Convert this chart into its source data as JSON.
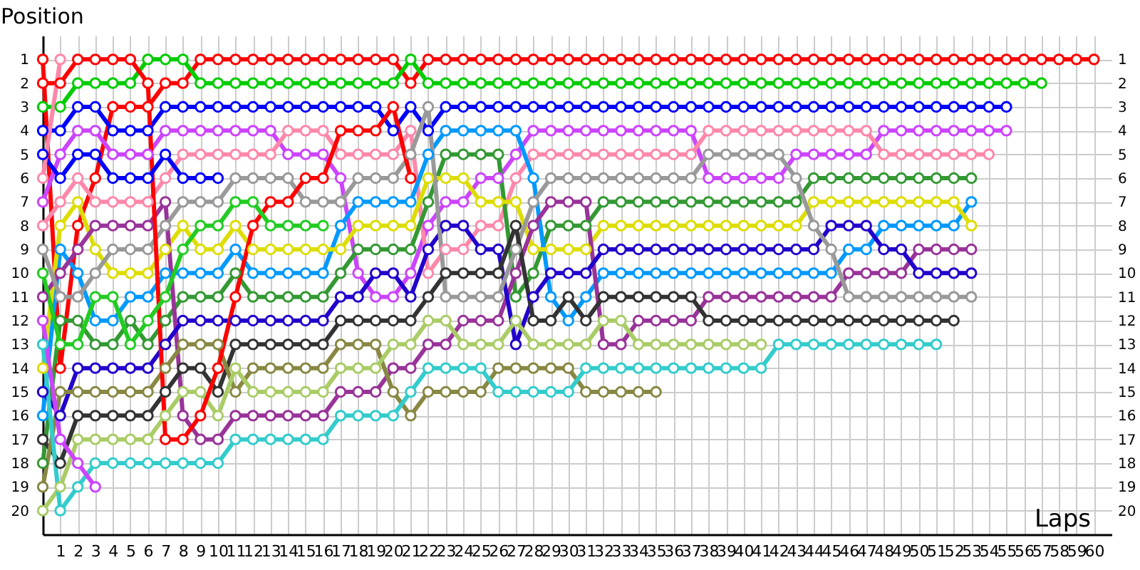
{
  "chart_data": {
    "type": "line",
    "xlabel": "Laps",
    "ylabel": "Position",
    "x": [
      0,
      1,
      2,
      3,
      4,
      5,
      6,
      7,
      8,
      9,
      10,
      11,
      12,
      13,
      14,
      15,
      16,
      17,
      18,
      19,
      20,
      21,
      22,
      23,
      24,
      25,
      26,
      27,
      28,
      29,
      30,
      31,
      32,
      33,
      34,
      35,
      36,
      37,
      38,
      39,
      40,
      41,
      42,
      43,
      44,
      45,
      46,
      47,
      48,
      49,
      50,
      51,
      52,
      53,
      54,
      55,
      56,
      57,
      58,
      59,
      60
    ],
    "xlim": [
      0,
      61
    ],
    "xticks": [
      1,
      2,
      3,
      4,
      5,
      6,
      7,
      8,
      9,
      10,
      11,
      12,
      13,
      14,
      15,
      16,
      17,
      18,
      19,
      20,
      21,
      22,
      23,
      24,
      25,
      26,
      27,
      28,
      29,
      30,
      31,
      32,
      33,
      34,
      35,
      36,
      37,
      38,
      39,
      40,
      41,
      42,
      43,
      44,
      45,
      46,
      47,
      48,
      49,
      50,
      51,
      52,
      53,
      54,
      55,
      56,
      57,
      58,
      59,
      60
    ],
    "ylim": [
      21,
      0
    ],
    "yticks": [
      1,
      2,
      3,
      4,
      5,
      6,
      7,
      8,
      9,
      10,
      11,
      12,
      13,
      14,
      15,
      16,
      17,
      18,
      19,
      20
    ],
    "y2lim": [
      21,
      0
    ],
    "y2ticks": [
      1,
      2,
      3,
      4,
      5,
      6,
      7,
      8,
      9,
      10,
      11,
      12,
      13,
      14,
      15,
      16,
      17,
      18,
      19,
      20
    ],
    "grid": true,
    "legend": false,
    "marker": "circle",
    "line_style": "solid",
    "series": [
      {
        "color": "#ff0000",
        "values": [
          1,
          14,
          8,
          6,
          3,
          3,
          3,
          2,
          2,
          1,
          1,
          1,
          1,
          1,
          1,
          1,
          1,
          1,
          1,
          1,
          1,
          2,
          1,
          1,
          1,
          1,
          1,
          1,
          1,
          1,
          1,
          1,
          1,
          1,
          1,
          1,
          1,
          1,
          1,
          1,
          1,
          1,
          1,
          1,
          1,
          1,
          1,
          1,
          1,
          1,
          1,
          1,
          1,
          1,
          1,
          1,
          1,
          1,
          1,
          1,
          1
        ]
      },
      {
        "color": "#00cc00",
        "values": [
          3,
          3,
          2,
          2,
          2,
          2,
          1,
          1,
          1,
          2,
          2,
          2,
          2,
          2,
          2,
          2,
          2,
          2,
          2,
          2,
          2,
          1,
          2,
          2,
          2,
          2,
          2,
          2,
          2,
          2,
          2,
          2,
          2,
          2,
          2,
          2,
          2,
          2,
          2,
          2,
          2,
          2,
          2,
          2,
          2,
          2,
          2,
          2,
          2,
          2,
          2,
          2,
          2,
          2,
          2,
          2,
          2,
          2,
          null,
          null,
          null
        ]
      },
      {
        "color": "#0000ff",
        "values": [
          4,
          4,
          3,
          3,
          4,
          4,
          4,
          3,
          3,
          3,
          3,
          3,
          3,
          3,
          3,
          3,
          3,
          3,
          3,
          3,
          4,
          3,
          4,
          3,
          3,
          3,
          3,
          3,
          3,
          3,
          3,
          3,
          3,
          3,
          3,
          3,
          3,
          3,
          3,
          3,
          3,
          3,
          3,
          3,
          3,
          3,
          3,
          3,
          3,
          3,
          3,
          3,
          3,
          3,
          3,
          3,
          null,
          null,
          null,
          null,
          null
        ]
      },
      {
        "color": "#cc44ff",
        "values": [
          7,
          5,
          4,
          4,
          5,
          5,
          5,
          4,
          4,
          4,
          4,
          4,
          4,
          4,
          5,
          5,
          5,
          6,
          10,
          11,
          11,
          10,
          8,
          7,
          7,
          6,
          6,
          5,
          4,
          4,
          4,
          4,
          4,
          4,
          4,
          4,
          4,
          4,
          6,
          6,
          6,
          6,
          6,
          5,
          5,
          5,
          5,
          5,
          4,
          4,
          4,
          4,
          4,
          4,
          4,
          4,
          null,
          null,
          null,
          null,
          null
        ]
      },
      {
        "color": "#ff88aa",
        "values": [
          8,
          7,
          6,
          7,
          7,
          7,
          7,
          6,
          5,
          5,
          5,
          5,
          5,
          5,
          4,
          4,
          4,
          5,
          5,
          5,
          5,
          4,
          10,
          9,
          9,
          8,
          8,
          6,
          5,
          5,
          5,
          5,
          5,
          5,
          5,
          5,
          5,
          5,
          4,
          4,
          4,
          4,
          4,
          4,
          4,
          4,
          4,
          4,
          5,
          5,
          5,
          5,
          5,
          5,
          5,
          null,
          null,
          null,
          null,
          null,
          null
        ]
      },
      {
        "color": "#339933",
        "values": [
          18,
          12,
          12,
          13,
          13,
          12,
          13,
          12,
          11,
          11,
          11,
          10,
          11,
          11,
          11,
          11,
          11,
          10,
          9,
          9,
          9,
          9,
          7,
          5,
          5,
          5,
          5,
          11,
          10,
          8,
          8,
          8,
          7,
          7,
          7,
          7,
          7,
          7,
          7,
          7,
          7,
          7,
          7,
          7,
          6,
          6,
          6,
          6,
          6,
          6,
          6,
          6,
          6,
          6,
          null,
          null,
          null,
          null,
          null,
          null,
          null
        ]
      },
      {
        "color": "#0099ff",
        "values": [
          16,
          9,
          10,
          12,
          12,
          11,
          11,
          10,
          10,
          10,
          10,
          9,
          10,
          10,
          10,
          10,
          10,
          8,
          7,
          7,
          7,
          7,
          5,
          4,
          4,
          4,
          4,
          4,
          6,
          11,
          12,
          11,
          10,
          10,
          10,
          10,
          10,
          10,
          10,
          10,
          10,
          10,
          10,
          10,
          10,
          10,
          9,
          9,
          8,
          8,
          8,
          8,
          8,
          7,
          null,
          null,
          null,
          null,
          null,
          null,
          null
        ]
      },
      {
        "color": "#dddd00",
        "values": [
          14,
          8,
          7,
          9,
          10,
          10,
          10,
          9,
          8,
          9,
          9,
          8,
          9,
          9,
          9,
          9,
          9,
          9,
          8,
          8,
          8,
          8,
          6,
          6,
          6,
          7,
          7,
          7,
          9,
          9,
          9,
          9,
          8,
          8,
          8,
          8,
          8,
          8,
          8,
          8,
          8,
          8,
          8,
          8,
          7,
          7,
          7,
          7,
          7,
          7,
          7,
          7,
          7,
          8,
          null,
          null,
          null,
          null,
          null,
          null,
          null
        ]
      },
      {
        "color": "#993399",
        "values": [
          11,
          10,
          9,
          8,
          8,
          8,
          8,
          7,
          16,
          17,
          17,
          16,
          16,
          16,
          16,
          16,
          16,
          15,
          15,
          15,
          14,
          14,
          13,
          13,
          12,
          12,
          12,
          10,
          8,
          7,
          7,
          7,
          13,
          13,
          12,
          12,
          12,
          12,
          11,
          11,
          11,
          11,
          11,
          11,
          11,
          11,
          10,
          10,
          10,
          10,
          9,
          9,
          9,
          9,
          null,
          null,
          null,
          null,
          null,
          null,
          null
        ]
      },
      {
        "color": "#2200cc",
        "values": [
          15,
          16,
          14,
          14,
          14,
          14,
          14,
          13,
          12,
          12,
          12,
          12,
          12,
          12,
          12,
          12,
          12,
          11,
          11,
          10,
          10,
          11,
          9,
          8,
          8,
          9,
          9,
          13,
          11,
          10,
          10,
          10,
          9,
          9,
          9,
          9,
          9,
          9,
          9,
          9,
          9,
          9,
          9,
          9,
          9,
          8,
          8,
          8,
          9,
          9,
          10,
          10,
          10,
          10,
          null,
          null,
          null,
          null,
          null,
          null,
          null
        ]
      },
      {
        "color": "#999999",
        "values": [
          9,
          11,
          11,
          10,
          9,
          9,
          9,
          8,
          7,
          7,
          7,
          6,
          6,
          6,
          6,
          7,
          7,
          7,
          6,
          6,
          6,
          5,
          3,
          11,
          11,
          11,
          11,
          9,
          7,
          6,
          6,
          6,
          6,
          6,
          6,
          6,
          6,
          6,
          5,
          5,
          5,
          5,
          5,
          6,
          8,
          9,
          11,
          11,
          11,
          11,
          11,
          11,
          11,
          11,
          null,
          null,
          null,
          null,
          null,
          null,
          null
        ]
      },
      {
        "color": "#333333",
        "values": [
          17,
          18,
          16,
          16,
          16,
          16,
          16,
          15,
          14,
          14,
          15,
          13,
          13,
          13,
          13,
          13,
          13,
          12,
          12,
          12,
          12,
          12,
          11,
          10,
          10,
          10,
          10,
          8,
          12,
          12,
          11,
          12,
          11,
          11,
          11,
          11,
          11,
          11,
          12,
          12,
          12,
          12,
          12,
          12,
          12,
          12,
          12,
          12,
          12,
          12,
          12,
          12,
          12,
          null,
          null,
          null,
          null,
          null,
          null,
          null,
          null
        ]
      },
      {
        "color": "#888844",
        "values": [
          19,
          15,
          15,
          15,
          15,
          15,
          15,
          14,
          13,
          13,
          13,
          15,
          14,
          14,
          14,
          14,
          14,
          13,
          13,
          13,
          15,
          16,
          15,
          15,
          15,
          15,
          14,
          14,
          14,
          14,
          14,
          15,
          15,
          15,
          15,
          15,
          null,
          null,
          null,
          null,
          null,
          null,
          null,
          null,
          null,
          null,
          null,
          null,
          null,
          null,
          null,
          null,
          null,
          null,
          null,
          null,
          null,
          null,
          null,
          null,
          null
        ]
      },
      {
        "color": "#aacc66",
        "values": [
          20,
          19,
          17,
          17,
          17,
          17,
          17,
          16,
          15,
          15,
          16,
          14,
          15,
          15,
          15,
          15,
          15,
          14,
          14,
          14,
          13,
          13,
          12,
          12,
          13,
          13,
          13,
          12,
          13,
          13,
          13,
          13,
          12,
          12,
          13,
          13,
          13,
          13,
          13,
          13,
          13,
          13,
          null,
          null,
          null,
          null,
          null,
          null,
          null,
          null,
          null,
          null,
          null,
          null,
          null,
          null,
          null,
          null,
          null,
          null,
          null
        ]
      },
      {
        "color": "#33cccc",
        "values": [
          13,
          20,
          19,
          18,
          18,
          18,
          18,
          18,
          18,
          18,
          18,
          17,
          17,
          17,
          17,
          17,
          17,
          16,
          16,
          16,
          16,
          15,
          14,
          14,
          14,
          14,
          15,
          15,
          15,
          15,
          15,
          14,
          14,
          14,
          14,
          14,
          14,
          14,
          14,
          14,
          14,
          14,
          13,
          13,
          13,
          13,
          13,
          13,
          13,
          13,
          13,
          13,
          null,
          null,
          null,
          null,
          null,
          null,
          null,
          null,
          null
        ]
      },
      {
        "color": "#ff0000",
        "values": [
          2,
          2,
          1,
          1,
          1,
          1,
          2,
          17,
          17,
          16,
          14,
          11,
          8,
          7,
          7,
          6,
          6,
          4,
          4,
          4,
          3,
          6,
          null,
          null,
          null,
          null,
          null,
          null,
          null,
          null,
          null,
          null,
          null,
          null,
          null,
          null,
          null,
          null,
          null,
          null,
          null,
          null,
          null,
          null,
          null,
          null,
          null,
          null,
          null,
          null,
          null,
          null,
          null,
          null,
          null,
          null,
          null,
          null,
          null,
          null,
          null
        ]
      },
      {
        "color": "#0000ff",
        "values": [
          5,
          6,
          5,
          5,
          6,
          6,
          6,
          5,
          6,
          6,
          6,
          null,
          null,
          null,
          null,
          null,
          null,
          null,
          null,
          null,
          null,
          null,
          null,
          null,
          null,
          null,
          null,
          null,
          null,
          null,
          null,
          null,
          null,
          null,
          null,
          null,
          null,
          null,
          null,
          null,
          null,
          null,
          null,
          null,
          null,
          null,
          null,
          null,
          null,
          null,
          null,
          null,
          null,
          null,
          null,
          null,
          null,
          null,
          null,
          null,
          null
        ]
      },
      {
        "color": "#22cc22",
        "values": [
          10,
          13,
          13,
          11,
          11,
          13,
          12,
          11,
          9,
          8,
          8,
          7,
          7,
          8,
          8,
          8,
          8,
          null,
          null,
          null,
          null,
          null,
          null,
          null,
          null,
          null,
          null,
          null,
          null,
          null,
          null,
          null,
          null,
          null,
          null,
          null,
          null,
          null,
          null,
          null,
          null,
          null,
          null,
          null,
          null,
          null,
          null,
          null,
          null,
          null,
          null,
          null,
          null,
          null,
          null,
          null,
          null,
          null,
          null,
          null,
          null
        ]
      },
      {
        "color": "#cc44ff",
        "values": [
          12,
          17,
          18,
          19,
          null,
          null,
          null,
          null,
          null,
          null,
          null,
          null,
          null,
          null,
          null,
          null,
          null,
          null,
          null,
          null,
          null,
          null,
          null,
          null,
          null,
          null,
          null,
          null,
          null,
          null,
          null,
          null,
          null,
          null,
          null,
          null,
          null,
          null,
          null,
          null,
          null,
          null,
          null,
          null,
          null,
          null,
          null,
          null,
          null,
          null,
          null,
          null,
          null,
          null,
          null,
          null,
          null,
          null,
          null,
          null,
          null
        ]
      },
      {
        "color": "#ff88aa",
        "values": [
          6,
          1,
          null,
          null,
          null,
          null,
          null,
          null,
          null,
          null,
          null,
          null,
          null,
          null,
          null,
          null,
          null,
          null,
          null,
          null,
          null,
          null,
          null,
          null,
          null,
          null,
          null,
          null,
          null,
          null,
          null,
          null,
          null,
          null,
          null,
          null,
          null,
          null,
          null,
          null,
          null,
          null,
          null,
          null,
          null,
          null,
          null,
          null,
          null,
          null,
          null,
          null,
          null,
          null,
          null,
          null,
          null,
          null,
          null,
          null,
          null
        ]
      }
    ]
  }
}
